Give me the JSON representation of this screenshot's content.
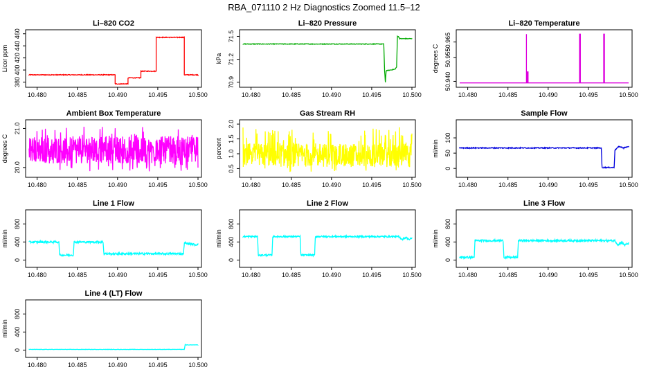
{
  "title": "RBA_071110  2 Hz Diagnostics Zoomed 11.5–12",
  "chart_data": [
    {
      "type": "line",
      "title": "Li–820 CO2",
      "ylabel": "Licor ppm",
      "color": "#ff0000",
      "xlim": [
        10.479,
        10.5
      ],
      "ylim": [
        376,
        462
      ],
      "xticks": [
        10.48,
        10.485,
        10.49,
        10.495,
        10.5
      ],
      "xtick_labels": [
        "10.480",
        "10.485",
        "10.490",
        "10.495",
        "10.500"
      ],
      "yticks": [
        380,
        400,
        420,
        440,
        460
      ],
      "ytick_labels": [
        "380",
        "400",
        "420",
        "440",
        "460"
      ],
      "series": [
        {
          "name": "CO2",
          "noise": 0.6,
          "x": [
            10.479,
            10.4897,
            10.4897,
            10.4913,
            10.4913,
            10.4929,
            10.4929,
            10.4948,
            10.4948,
            10.4983,
            10.4983,
            10.5
          ],
          "y": [
            392,
            392,
            377,
            377,
            387,
            387,
            398,
            398,
            454,
            454,
            392,
            392
          ]
        }
      ]
    },
    {
      "type": "line",
      "title": "Li–820 Pressure",
      "ylabel": "kPa",
      "color": "#00aa00",
      "xlim": [
        10.479,
        10.5
      ],
      "ylim": [
        70.87,
        71.55
      ],
      "xticks": [
        10.48,
        10.485,
        10.49,
        10.495,
        10.5
      ],
      "xtick_labels": [
        "10.480",
        "10.485",
        "10.490",
        "10.495",
        "10.500"
      ],
      "yticks": [
        70.9,
        71.2,
        71.5
      ],
      "ytick_labels": [
        "70.9",
        "71.2",
        "71.5"
      ],
      "series": [
        {
          "name": "Pressure",
          "noise": 0.004,
          "x": [
            10.479,
            10.4965,
            10.4966,
            10.4967,
            10.4968,
            10.4979,
            10.4981,
            10.4982,
            10.4983,
            10.4985,
            10.5
          ],
          "y": [
            71.4,
            71.4,
            71.05,
            70.9,
            71.05,
            71.07,
            71.1,
            71.5,
            71.5,
            71.47,
            71.47
          ]
        }
      ]
    },
    {
      "type": "line",
      "title": "Li–820 Temperature",
      "ylabel": "degrees C",
      "color": "#dd00dd",
      "xlim": [
        10.479,
        10.5
      ],
      "ylim": [
        50.938,
        50.971
      ],
      "xticks": [
        10.48,
        10.485,
        10.49,
        10.495,
        10.5
      ],
      "xtick_labels": [
        "10.480",
        "10.485",
        "10.490",
        "10.495",
        "10.500"
      ],
      "yticks": [
        50.94,
        50.955,
        50.965
      ],
      "ytick_labels": [
        "50.940",
        "50.955",
        "50.965"
      ],
      "series": [
        {
          "name": "Temperature",
          "noise": 0,
          "x": [
            10.479,
            10.4873,
            10.4873,
            10.4873,
            10.4874,
            10.4874,
            10.4875,
            10.4875,
            10.4939,
            10.4939,
            10.494,
            10.494,
            10.4969,
            10.4969,
            10.497,
            10.497,
            10.5
          ],
          "y": [
            50.939,
            50.939,
            50.97,
            50.939,
            50.939,
            50.946,
            50.946,
            50.939,
            50.939,
            50.97,
            50.97,
            50.939,
            50.939,
            50.97,
            50.97,
            50.939,
            50.939
          ]
        }
      ]
    },
    {
      "type": "line",
      "title": "Ambient Box Temperature",
      "ylabel": "degrees C",
      "color": "#ff00ff",
      "xlim": [
        10.479,
        10.5
      ],
      "ylim": [
        19.82,
        21.15
      ],
      "xticks": [
        10.48,
        10.485,
        10.49,
        10.495,
        10.5
      ],
      "xtick_labels": [
        "10.480",
        "10.485",
        "10.490",
        "10.495",
        "10.500"
      ],
      "yticks": [
        20.0,
        21.0
      ],
      "ytick_labels": [
        "20.0",
        "21.0"
      ],
      "series": [
        {
          "name": "Box temperature",
          "noisy": true,
          "count": 600,
          "x": [
            10.479,
            10.5
          ],
          "y": [
            20.45,
            20.45
          ],
          "min": 19.9,
          "max": 21.05,
          "spread": 0.35
        }
      ]
    },
    {
      "type": "line",
      "title": "Gas Stream RH",
      "ylabel": "percent",
      "color": "#ffff00",
      "xlim": [
        10.479,
        10.5
      ],
      "ylim": [
        0.3,
        2.05
      ],
      "xticks": [
        10.48,
        10.485,
        10.49,
        10.495,
        10.5
      ],
      "xtick_labels": [
        "10.480",
        "10.485",
        "10.490",
        "10.495",
        "10.500"
      ],
      "yticks": [
        0.5,
        1.0,
        1.5,
        2.0
      ],
      "ytick_labels": [
        "0.5",
        "1.0",
        "1.5",
        "2.0"
      ],
      "series": [
        {
          "name": "RH",
          "noisy": true,
          "count": 600,
          "x": [
            10.479,
            10.5
          ],
          "y": [
            0.95,
            0.95
          ],
          "min": 0.35,
          "max": 1.9,
          "spread": 0.4
        }
      ]
    },
    {
      "type": "line",
      "title": "Sample Flow",
      "ylabel": "ml/min",
      "color": "#0000dd",
      "xlim": [
        10.479,
        10.5
      ],
      "ylim": [
        -20,
        150
      ],
      "xticks": [
        10.48,
        10.485,
        10.49,
        10.495,
        10.5
      ],
      "xtick_labels": [
        "10.480",
        "10.485",
        "10.490",
        "10.495",
        "10.500"
      ],
      "yticks": [
        0,
        50,
        100
      ],
      "ytick_labels": [
        "0",
        "50",
        "100"
      ],
      "series": [
        {
          "name": "Sample flow",
          "noise": 1.5,
          "x": [
            10.479,
            10.4966,
            10.4967,
            10.4982,
            10.4983,
            10.4988,
            10.4994,
            10.5
          ],
          "y": [
            67,
            67,
            3,
            3,
            60,
            72,
            67,
            72
          ]
        }
      ]
    },
    {
      "type": "line",
      "title": "Line 1 Flow",
      "ylabel": "ml/min",
      "color": "#00ffff",
      "xlim": [
        10.479,
        10.5
      ],
      "ylim": [
        -100,
        1050
      ],
      "xticks": [
        10.48,
        10.485,
        10.49,
        10.495,
        10.5
      ],
      "xtick_labels": [
        "10.480",
        "10.485",
        "10.490",
        "10.495",
        "10.500"
      ],
      "yticks": [
        0,
        400,
        800
      ],
      "ytick_labels": [
        "0",
        "400",
        "800"
      ],
      "series": [
        {
          "name": "Line 1",
          "noise": 22,
          "x": [
            10.479,
            10.4827,
            10.4828,
            10.4845,
            10.4846,
            10.4882,
            10.4883,
            10.4982,
            10.4983,
            10.4988,
            10.4993,
            10.4997,
            10.5
          ],
          "y": [
            400,
            400,
            110,
            110,
            400,
            400,
            140,
            140,
            380,
            360,
            350,
            340,
            350
          ]
        }
      ]
    },
    {
      "type": "line",
      "title": "Line 2 Flow",
      "ylabel": "ml/min",
      "color": "#00ffff",
      "xlim": [
        10.479,
        10.5
      ],
      "ylim": [
        -100,
        1050
      ],
      "xticks": [
        10.48,
        10.485,
        10.49,
        10.495,
        10.5
      ],
      "xtick_labels": [
        "10.480",
        "10.485",
        "10.490",
        "10.495",
        "10.500"
      ],
      "yticks": [
        0,
        400,
        800
      ],
      "ytick_labels": [
        "0",
        "400",
        "800"
      ],
      "series": [
        {
          "name": "Line 2",
          "noise": 18,
          "x": [
            10.479,
            10.4808,
            10.4809,
            10.4826,
            10.4827,
            10.4861,
            10.4862,
            10.4879,
            10.488,
            10.4983,
            10.4988,
            10.4993,
            10.4997,
            10.5
          ],
          "y": [
            520,
            520,
            110,
            110,
            520,
            520,
            110,
            110,
            520,
            520,
            460,
            500,
            450,
            490
          ]
        }
      ]
    },
    {
      "type": "line",
      "title": "Line 3 Flow",
      "ylabel": "ml/min",
      "color": "#00ffff",
      "xlim": [
        10.479,
        10.5
      ],
      "ylim": [
        -100,
        1050
      ],
      "xticks": [
        10.48,
        10.485,
        10.49,
        10.495,
        10.5
      ],
      "xtick_labels": [
        "10.480",
        "10.485",
        "10.490",
        "10.495",
        "10.500"
      ],
      "yticks": [
        0,
        400,
        800
      ],
      "ytick_labels": [
        "0",
        "400",
        "800"
      ],
      "series": [
        {
          "name": "Line 3",
          "noise": 22,
          "x": [
            10.479,
            10.4808,
            10.4809,
            10.4844,
            10.4845,
            10.4862,
            10.4863,
            10.4983,
            10.4987,
            10.4991,
            10.4995,
            10.5
          ],
          "y": [
            60,
            60,
            430,
            430,
            60,
            60,
            430,
            430,
            330,
            400,
            330,
            370
          ]
        }
      ]
    },
    {
      "type": "line",
      "title": "Line 4 (LT) Flow",
      "ylabel": "ml/min",
      "color": "#00ffff",
      "xlim": [
        10.479,
        10.5
      ],
      "ylim": [
        -100,
        1050
      ],
      "xticks": [
        10.48,
        10.485,
        10.49,
        10.495,
        10.5
      ],
      "xtick_labels": [
        "10.480",
        "10.485",
        "10.490",
        "10.495",
        "10.500"
      ],
      "yticks": [
        0,
        400,
        800
      ],
      "ytick_labels": [
        "0",
        "400",
        "800"
      ],
      "series": [
        {
          "name": "Line 4",
          "noise": 3,
          "x": [
            10.479,
            10.4983,
            10.4984,
            10.5
          ],
          "y": [
            15,
            15,
            115,
            115
          ]
        }
      ]
    }
  ]
}
